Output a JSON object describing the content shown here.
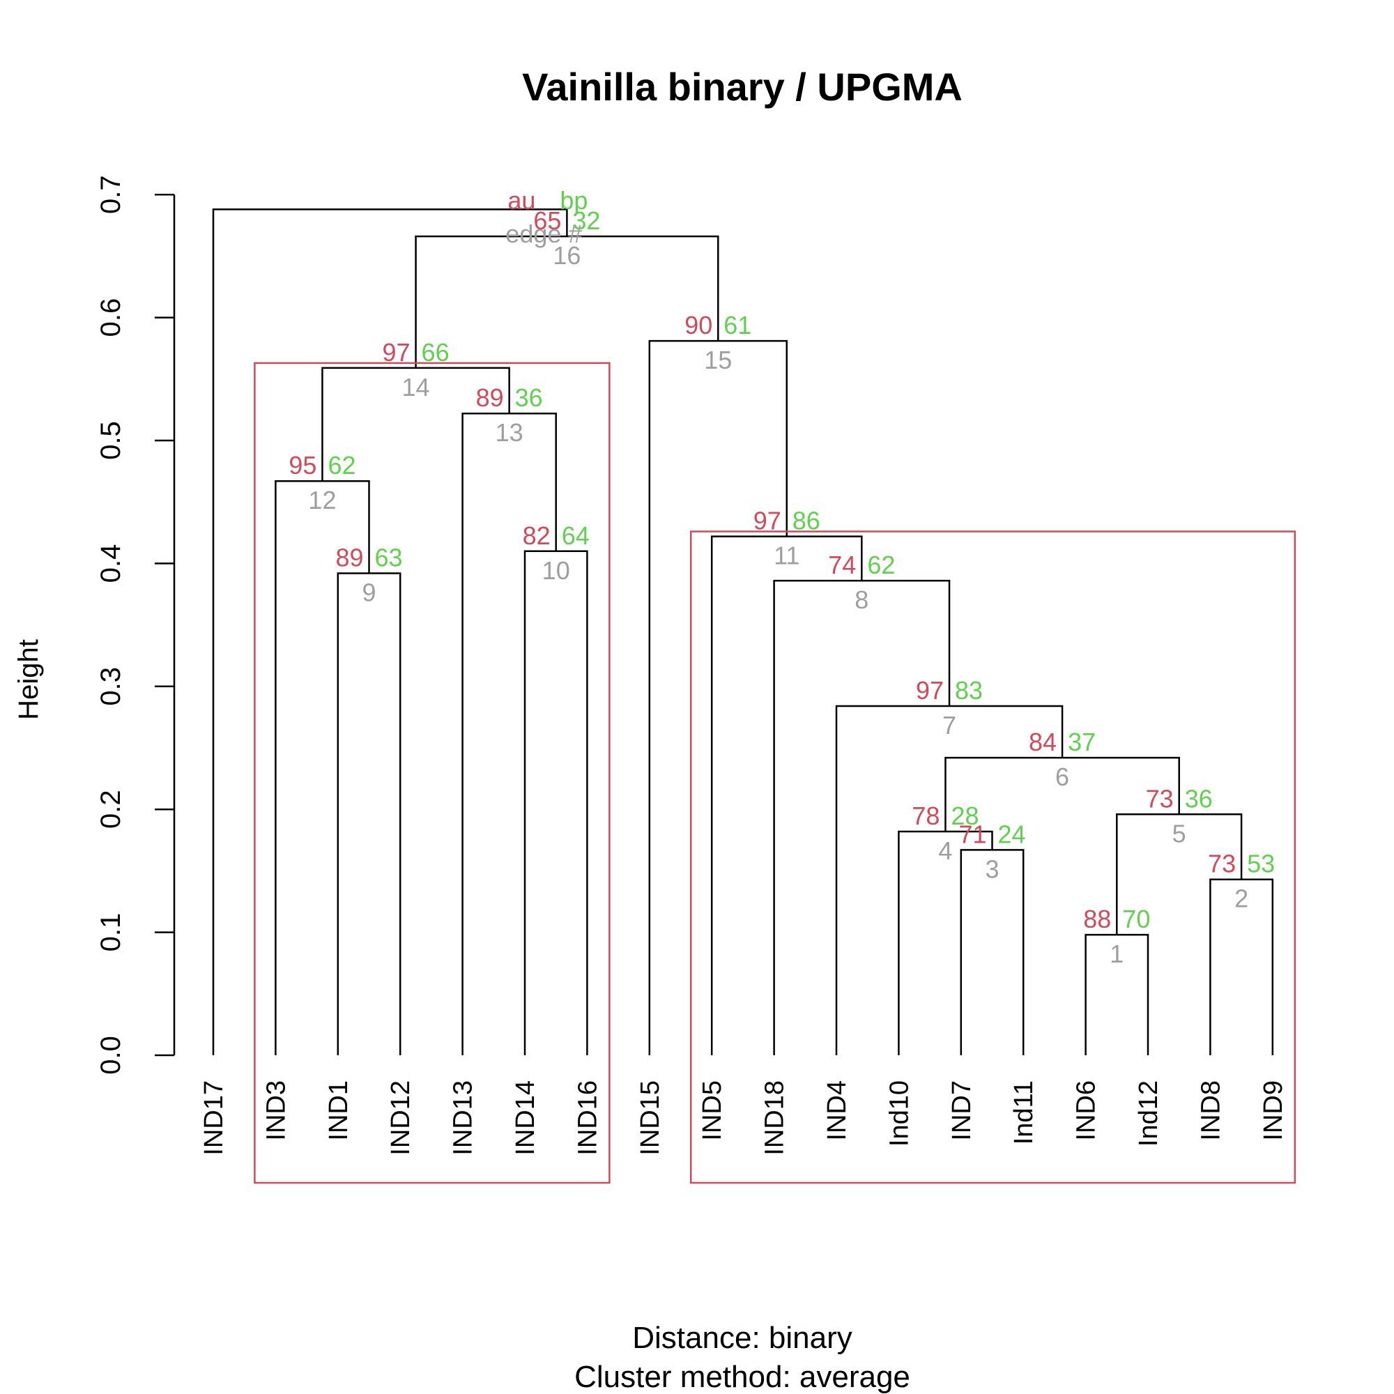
{
  "chart_data": {
    "type": "dendrogram",
    "title": "Vainilla binary / UPGMA",
    "ylabel": "Height",
    "sub_lines": [
      "Distance:  binary",
      "Cluster method: average"
    ],
    "ylim": [
      0,
      0.7
    ],
    "yticks": [
      "0.0",
      "0.1",
      "0.2",
      "0.3",
      "0.4",
      "0.5",
      "0.6",
      "0.7"
    ],
    "legend": {
      "au": "au",
      "bp": "bp",
      "edge": "edge #"
    },
    "colors": {
      "au": "#d1495b",
      "bp": "#61d04f",
      "edge": "#9e9e9e",
      "rect": "#d1495b"
    },
    "leaves": [
      "IND17",
      "IND3",
      "IND1",
      "IND12",
      "IND13",
      "IND14",
      "IND16",
      "IND15",
      "IND5",
      "IND18",
      "IND4",
      "Ind10",
      "IND7",
      "Ind11",
      "IND6",
      "Ind12",
      "IND8",
      "IND9"
    ],
    "merges": [
      {
        "edge": "1",
        "height": 0.098,
        "left": "IND6",
        "right": "Ind12",
        "au": "88",
        "bp": "70"
      },
      {
        "edge": "2",
        "height": 0.143,
        "left": "IND8",
        "right": "IND9",
        "au": "73",
        "bp": "53"
      },
      {
        "edge": "3",
        "height": 0.167,
        "left": "IND7",
        "right": "Ind11",
        "au": "71",
        "bp": "24"
      },
      {
        "edge": "4",
        "height": 0.182,
        "left": "Ind10",
        "right": "3",
        "au": "78",
        "bp": "28"
      },
      {
        "edge": "5",
        "height": 0.196,
        "left": "1",
        "right": "2",
        "au": "73",
        "bp": "36"
      },
      {
        "edge": "6",
        "height": 0.242,
        "left": "4",
        "right": "5",
        "au": "84",
        "bp": "37"
      },
      {
        "edge": "7",
        "height": 0.284,
        "left": "IND4",
        "right": "6",
        "au": "97",
        "bp": "83"
      },
      {
        "edge": "8",
        "height": 0.386,
        "left": "IND18",
        "right": "7",
        "au": "74",
        "bp": "62"
      },
      {
        "edge": "9",
        "height": 0.392,
        "left": "IND1",
        "right": "IND12",
        "au": "89",
        "bp": "63"
      },
      {
        "edge": "10",
        "height": 0.41,
        "left": "IND14",
        "right": "IND16",
        "au": "82",
        "bp": "64"
      },
      {
        "edge": "11",
        "height": 0.422,
        "left": "IND5",
        "right": "8",
        "au": "97",
        "bp": "86"
      },
      {
        "edge": "12",
        "height": 0.467,
        "left": "IND3",
        "right": "9",
        "au": "95",
        "bp": "62"
      },
      {
        "edge": "13",
        "height": 0.522,
        "left": "IND13",
        "right": "10",
        "au": "89",
        "bp": "36"
      },
      {
        "edge": "14",
        "height": 0.559,
        "left": "12",
        "right": "13",
        "au": "97",
        "bp": "66"
      },
      {
        "edge": "15",
        "height": 0.581,
        "left": "IND15",
        "right": "11",
        "au": "90",
        "bp": "61"
      },
      {
        "edge": "16",
        "height": 0.666,
        "left": "14",
        "right": "15",
        "au": "65",
        "bp": "32"
      },
      {
        "edge": "",
        "height": 0.688,
        "left": "IND17",
        "right": "16",
        "au": "",
        "bp": ""
      }
    ],
    "highlight_clusters": [
      {
        "from": "IND3",
        "to": "IND16",
        "top": 0.563
      },
      {
        "from": "IND5",
        "to": "IND9",
        "top": 0.426
      }
    ]
  }
}
